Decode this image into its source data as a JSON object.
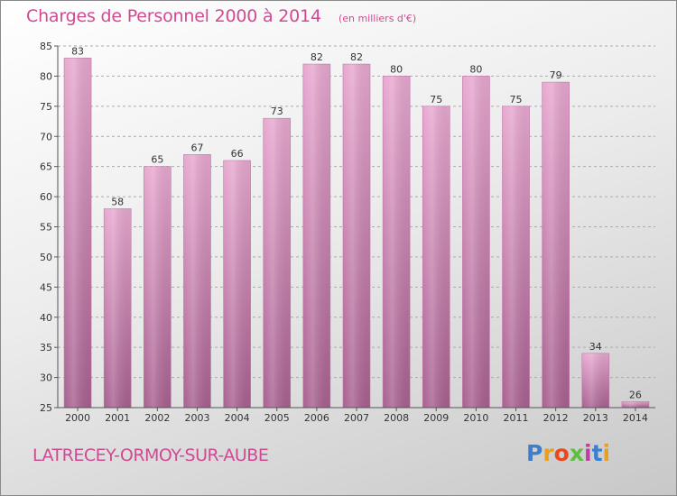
{
  "title": "Charges de Personnel 2000 à 2014",
  "subtitle": "(en milliers d'€)",
  "place": "LATRECEY-ORMOY-SUR-AUBE",
  "logo": {
    "text": "Proxiti",
    "colors": [
      "#3a7fd0",
      "#e8a020",
      "#e84a20",
      "#5bbf40",
      "#c040a0",
      "#3a7fd0",
      "#e8a020"
    ]
  },
  "colors": {
    "accent": "#d04a93",
    "bar_top": "#e8a8d0",
    "bar_bottom": "#a86090",
    "grid": "#aaaaaa"
  },
  "chart_data": {
    "type": "bar",
    "categories": [
      "2000",
      "2001",
      "2002",
      "2003",
      "2004",
      "2005",
      "2006",
      "2007",
      "2008",
      "2009",
      "2010",
      "2011",
      "2012",
      "2013",
      "2014"
    ],
    "values": [
      83,
      58,
      65,
      67,
      66,
      73,
      82,
      82,
      80,
      75,
      80,
      75,
      79,
      34,
      26
    ],
    "ylim": [
      25,
      85
    ],
    "yticks": [
      25,
      30,
      35,
      40,
      45,
      50,
      55,
      60,
      65,
      70,
      75,
      80,
      85
    ],
    "grid": true,
    "legend": "none"
  }
}
